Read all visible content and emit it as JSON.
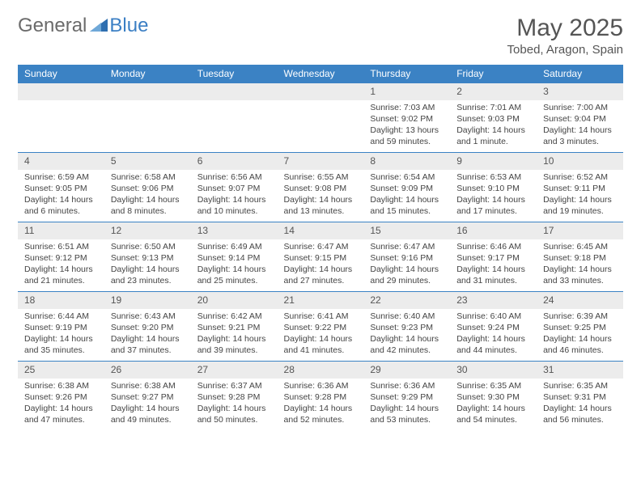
{
  "logo": {
    "text1": "General",
    "text2": "Blue"
  },
  "title": "May 2025",
  "location": "Tobed, Aragon, Spain",
  "colors": {
    "header_bg": "#3b82c4",
    "header_text": "#ffffff",
    "daynum_bg": "#ececec",
    "body_text": "#444444",
    "title_text": "#555555",
    "row_border": "#3b82c4"
  },
  "day_headers": [
    "Sunday",
    "Monday",
    "Tuesday",
    "Wednesday",
    "Thursday",
    "Friday",
    "Saturday"
  ],
  "weeks": [
    [
      {
        "n": "",
        "sr": "",
        "ss": "",
        "dl": ""
      },
      {
        "n": "",
        "sr": "",
        "ss": "",
        "dl": ""
      },
      {
        "n": "",
        "sr": "",
        "ss": "",
        "dl": ""
      },
      {
        "n": "",
        "sr": "",
        "ss": "",
        "dl": ""
      },
      {
        "n": "1",
        "sr": "Sunrise: 7:03 AM",
        "ss": "Sunset: 9:02 PM",
        "dl": "Daylight: 13 hours and 59 minutes."
      },
      {
        "n": "2",
        "sr": "Sunrise: 7:01 AM",
        "ss": "Sunset: 9:03 PM",
        "dl": "Daylight: 14 hours and 1 minute."
      },
      {
        "n": "3",
        "sr": "Sunrise: 7:00 AM",
        "ss": "Sunset: 9:04 PM",
        "dl": "Daylight: 14 hours and 3 minutes."
      }
    ],
    [
      {
        "n": "4",
        "sr": "Sunrise: 6:59 AM",
        "ss": "Sunset: 9:05 PM",
        "dl": "Daylight: 14 hours and 6 minutes."
      },
      {
        "n": "5",
        "sr": "Sunrise: 6:58 AM",
        "ss": "Sunset: 9:06 PM",
        "dl": "Daylight: 14 hours and 8 minutes."
      },
      {
        "n": "6",
        "sr": "Sunrise: 6:56 AM",
        "ss": "Sunset: 9:07 PM",
        "dl": "Daylight: 14 hours and 10 minutes."
      },
      {
        "n": "7",
        "sr": "Sunrise: 6:55 AM",
        "ss": "Sunset: 9:08 PM",
        "dl": "Daylight: 14 hours and 13 minutes."
      },
      {
        "n": "8",
        "sr": "Sunrise: 6:54 AM",
        "ss": "Sunset: 9:09 PM",
        "dl": "Daylight: 14 hours and 15 minutes."
      },
      {
        "n": "9",
        "sr": "Sunrise: 6:53 AM",
        "ss": "Sunset: 9:10 PM",
        "dl": "Daylight: 14 hours and 17 minutes."
      },
      {
        "n": "10",
        "sr": "Sunrise: 6:52 AM",
        "ss": "Sunset: 9:11 PM",
        "dl": "Daylight: 14 hours and 19 minutes."
      }
    ],
    [
      {
        "n": "11",
        "sr": "Sunrise: 6:51 AM",
        "ss": "Sunset: 9:12 PM",
        "dl": "Daylight: 14 hours and 21 minutes."
      },
      {
        "n": "12",
        "sr": "Sunrise: 6:50 AM",
        "ss": "Sunset: 9:13 PM",
        "dl": "Daylight: 14 hours and 23 minutes."
      },
      {
        "n": "13",
        "sr": "Sunrise: 6:49 AM",
        "ss": "Sunset: 9:14 PM",
        "dl": "Daylight: 14 hours and 25 minutes."
      },
      {
        "n": "14",
        "sr": "Sunrise: 6:47 AM",
        "ss": "Sunset: 9:15 PM",
        "dl": "Daylight: 14 hours and 27 minutes."
      },
      {
        "n": "15",
        "sr": "Sunrise: 6:47 AM",
        "ss": "Sunset: 9:16 PM",
        "dl": "Daylight: 14 hours and 29 minutes."
      },
      {
        "n": "16",
        "sr": "Sunrise: 6:46 AM",
        "ss": "Sunset: 9:17 PM",
        "dl": "Daylight: 14 hours and 31 minutes."
      },
      {
        "n": "17",
        "sr": "Sunrise: 6:45 AM",
        "ss": "Sunset: 9:18 PM",
        "dl": "Daylight: 14 hours and 33 minutes."
      }
    ],
    [
      {
        "n": "18",
        "sr": "Sunrise: 6:44 AM",
        "ss": "Sunset: 9:19 PM",
        "dl": "Daylight: 14 hours and 35 minutes."
      },
      {
        "n": "19",
        "sr": "Sunrise: 6:43 AM",
        "ss": "Sunset: 9:20 PM",
        "dl": "Daylight: 14 hours and 37 minutes."
      },
      {
        "n": "20",
        "sr": "Sunrise: 6:42 AM",
        "ss": "Sunset: 9:21 PM",
        "dl": "Daylight: 14 hours and 39 minutes."
      },
      {
        "n": "21",
        "sr": "Sunrise: 6:41 AM",
        "ss": "Sunset: 9:22 PM",
        "dl": "Daylight: 14 hours and 41 minutes."
      },
      {
        "n": "22",
        "sr": "Sunrise: 6:40 AM",
        "ss": "Sunset: 9:23 PM",
        "dl": "Daylight: 14 hours and 42 minutes."
      },
      {
        "n": "23",
        "sr": "Sunrise: 6:40 AM",
        "ss": "Sunset: 9:24 PM",
        "dl": "Daylight: 14 hours and 44 minutes."
      },
      {
        "n": "24",
        "sr": "Sunrise: 6:39 AM",
        "ss": "Sunset: 9:25 PM",
        "dl": "Daylight: 14 hours and 46 minutes."
      }
    ],
    [
      {
        "n": "25",
        "sr": "Sunrise: 6:38 AM",
        "ss": "Sunset: 9:26 PM",
        "dl": "Daylight: 14 hours and 47 minutes."
      },
      {
        "n": "26",
        "sr": "Sunrise: 6:38 AM",
        "ss": "Sunset: 9:27 PM",
        "dl": "Daylight: 14 hours and 49 minutes."
      },
      {
        "n": "27",
        "sr": "Sunrise: 6:37 AM",
        "ss": "Sunset: 9:28 PM",
        "dl": "Daylight: 14 hours and 50 minutes."
      },
      {
        "n": "28",
        "sr": "Sunrise: 6:36 AM",
        "ss": "Sunset: 9:28 PM",
        "dl": "Daylight: 14 hours and 52 minutes."
      },
      {
        "n": "29",
        "sr": "Sunrise: 6:36 AM",
        "ss": "Sunset: 9:29 PM",
        "dl": "Daylight: 14 hours and 53 minutes."
      },
      {
        "n": "30",
        "sr": "Sunrise: 6:35 AM",
        "ss": "Sunset: 9:30 PM",
        "dl": "Daylight: 14 hours and 54 minutes."
      },
      {
        "n": "31",
        "sr": "Sunrise: 6:35 AM",
        "ss": "Sunset: 9:31 PM",
        "dl": "Daylight: 14 hours and 56 minutes."
      }
    ]
  ]
}
